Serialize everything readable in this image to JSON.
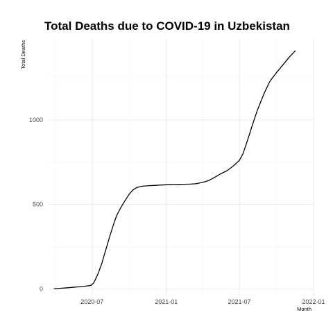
{
  "chart_data": {
    "type": "line",
    "title": "Total Deaths due to COVID-19 in Uzbekistan",
    "xlabel": "Month",
    "ylabel": "Total Deaths",
    "x_ticks": [
      {
        "date": "2020-07-01",
        "label": "2020-07"
      },
      {
        "date": "2021-01-01",
        "label": "2021-01"
      },
      {
        "date": "2021-07-01",
        "label": "2021-07"
      },
      {
        "date": "2022-01-01",
        "label": "2022-01"
      }
    ],
    "x_minor_ticks": [
      "2020-04-01",
      "2020-10-01",
      "2021-04-01",
      "2021-10-01"
    ],
    "y_ticks": [
      0,
      500,
      1000
    ],
    "y_minor_ticks": [
      250,
      750,
      1250
    ],
    "xlim": [
      "2020-03-15",
      "2022-01-01"
    ],
    "ylim": [
      -40,
      1480
    ],
    "grid": true,
    "series": [
      {
        "color": "#000000",
        "points": [
          [
            "2020-03-28",
            0
          ],
          [
            "2020-04-15",
            3
          ],
          [
            "2020-05-01",
            6
          ],
          [
            "2020-05-15",
            9
          ],
          [
            "2020-06-01",
            12
          ],
          [
            "2020-06-15",
            16
          ],
          [
            "2020-06-28",
            20
          ],
          [
            "2020-07-05",
            35
          ],
          [
            "2020-07-15",
            85
          ],
          [
            "2020-07-25",
            150
          ],
          [
            "2020-08-05",
            240
          ],
          [
            "2020-08-15",
            320
          ],
          [
            "2020-08-25",
            395
          ],
          [
            "2020-09-01",
            440
          ],
          [
            "2020-09-10",
            480
          ],
          [
            "2020-09-20",
            520
          ],
          [
            "2020-10-01",
            560
          ],
          [
            "2020-10-10",
            585
          ],
          [
            "2020-10-20",
            600
          ],
          [
            "2020-11-01",
            607
          ],
          [
            "2020-11-15",
            610
          ],
          [
            "2020-12-01",
            612
          ],
          [
            "2020-12-15",
            614
          ],
          [
            "2021-01-01",
            616
          ],
          [
            "2021-01-15",
            617
          ],
          [
            "2021-02-01",
            618
          ],
          [
            "2021-02-15",
            619
          ],
          [
            "2021-03-01",
            620
          ],
          [
            "2021-03-15",
            622
          ],
          [
            "2021-04-01",
            630
          ],
          [
            "2021-04-15",
            640
          ],
          [
            "2021-05-01",
            660
          ],
          [
            "2021-05-15",
            680
          ],
          [
            "2021-06-01",
            700
          ],
          [
            "2021-06-15",
            725
          ],
          [
            "2021-07-01",
            760
          ],
          [
            "2021-07-10",
            800
          ],
          [
            "2021-07-20",
            870
          ],
          [
            "2021-08-01",
            960
          ],
          [
            "2021-08-15",
            1060
          ],
          [
            "2021-09-01",
            1160
          ],
          [
            "2021-09-15",
            1230
          ],
          [
            "2021-10-01",
            1280
          ],
          [
            "2021-10-15",
            1320
          ],
          [
            "2021-11-01",
            1370
          ],
          [
            "2021-11-17",
            1410
          ]
        ]
      }
    ]
  }
}
